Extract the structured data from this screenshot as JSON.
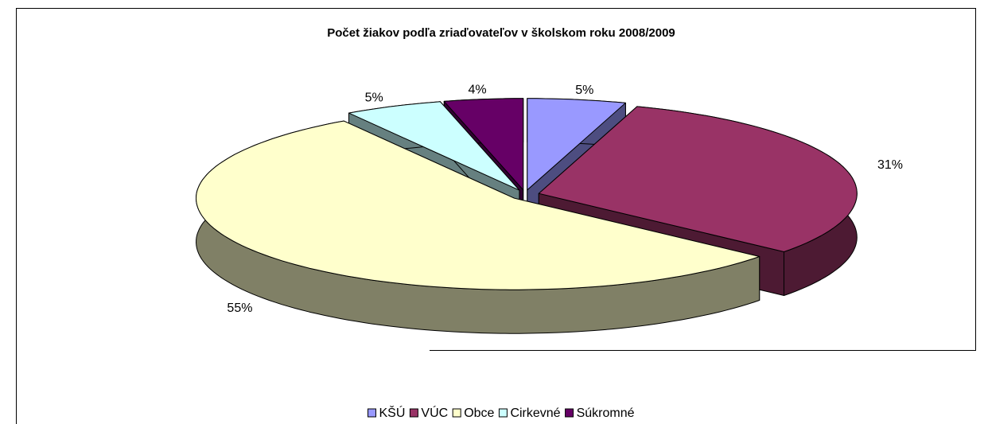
{
  "chart_data": {
    "type": "pie",
    "title": "Počet žiakov podľa zriaďovateľov v školskom roku 2008/2009",
    "categories": [
      "KŠÚ",
      "VÚC",
      "Obce",
      "Cirkevné",
      "Súkromné"
    ],
    "values": [
      5,
      31,
      55,
      5,
      4
    ],
    "value_labels": [
      "5%",
      "31%",
      "55%",
      "5%",
      "4%"
    ],
    "colors": [
      "#9999ff",
      "#993366",
      "#ffffcc",
      "#ccffff",
      "#660066"
    ],
    "legend": "bottom"
  }
}
